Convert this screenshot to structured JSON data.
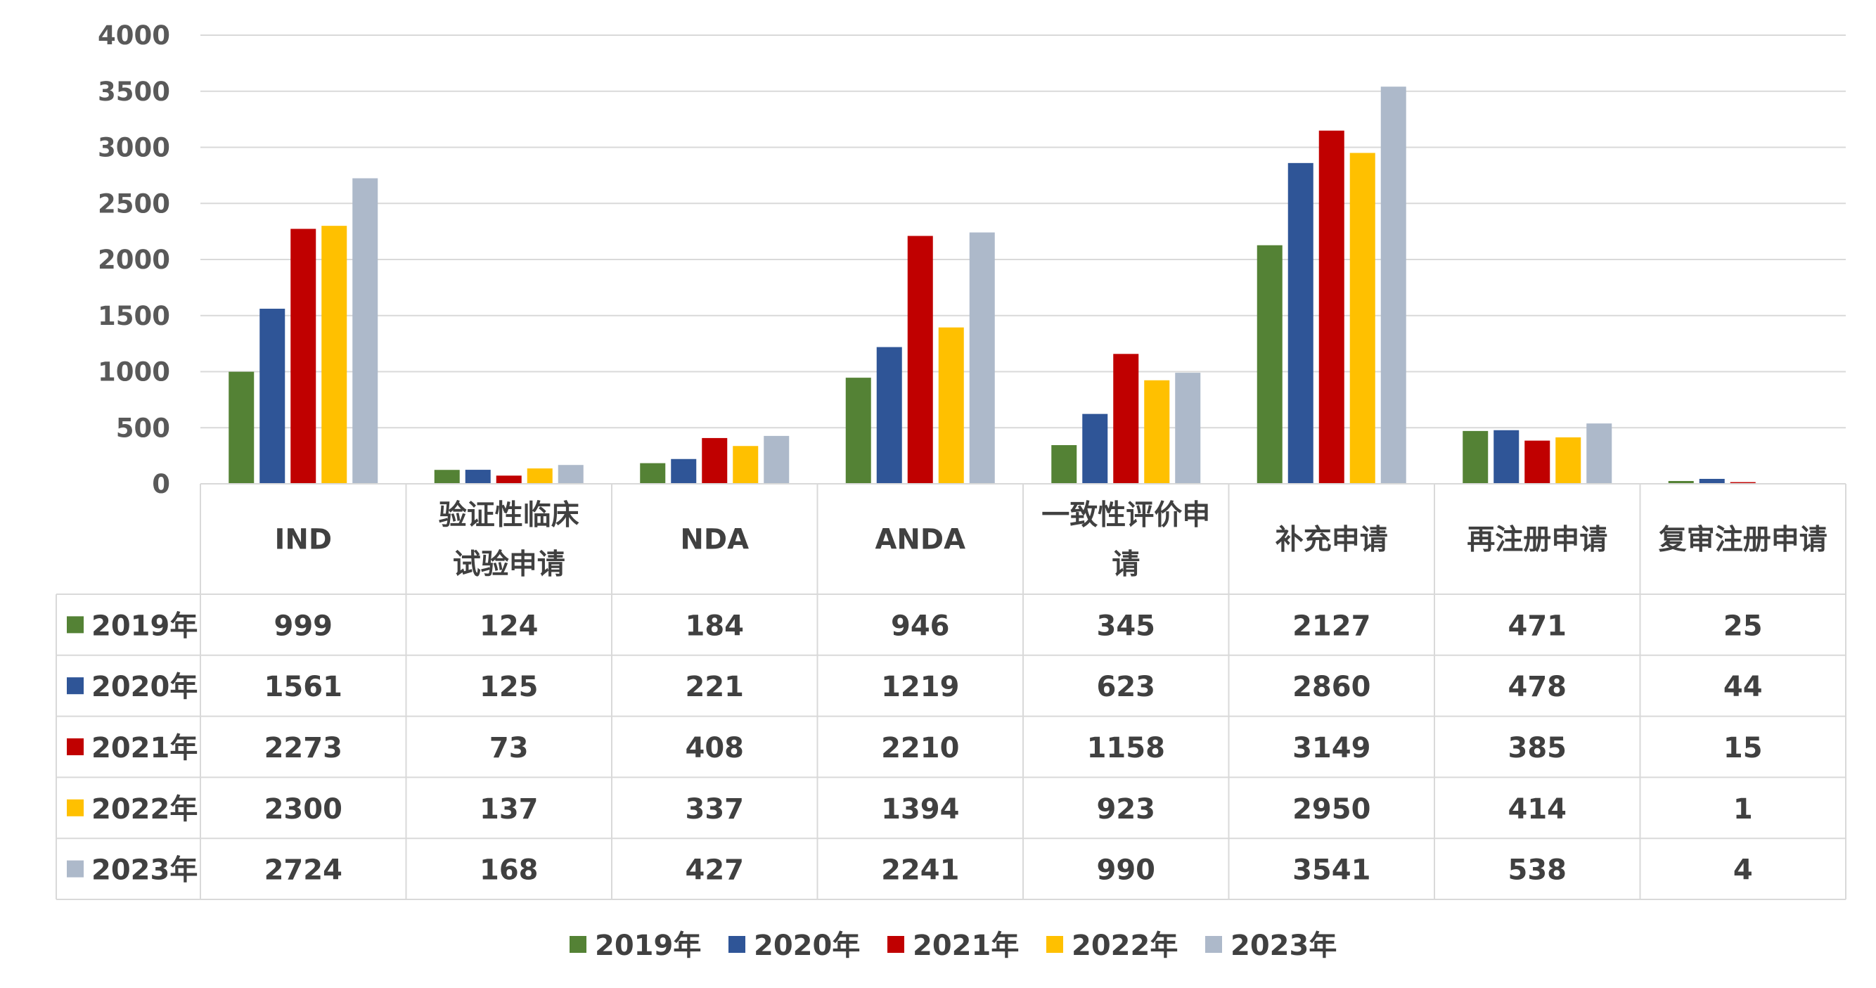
{
  "chart_data": {
    "type": "bar",
    "title": "",
    "xlabel": "",
    "ylabel": "",
    "ylim": [
      0,
      4000
    ],
    "y_ticks": [
      "0",
      "500",
      "1000",
      "1500",
      "2000",
      "2500",
      "3000",
      "3500",
      "4000"
    ],
    "grid": true,
    "legend_position": "bottom",
    "data_table": true,
    "categories": [
      [
        "IND"
      ],
      [
        "验证性临床",
        "试验申请"
      ],
      [
        "NDA"
      ],
      [
        "ANDA"
      ],
      [
        "一致性评价申",
        "请"
      ],
      [
        "补充申请"
      ],
      [
        "再注册申请"
      ],
      [
        "复审注册申请"
      ]
    ],
    "series": [
      {
        "name": "2019年",
        "color": "#548235",
        "values": [
          999,
          124,
          184,
          946,
          345,
          2127,
          471,
          25
        ]
      },
      {
        "name": "2020年",
        "color": "#2F5597",
        "values": [
          1561,
          125,
          221,
          1219,
          623,
          2860,
          478,
          44
        ]
      },
      {
        "name": "2021年",
        "color": "#C00000",
        "values": [
          2273,
          73,
          408,
          2210,
          1158,
          3149,
          385,
          15
        ]
      },
      {
        "name": "2022年",
        "color": "#FFC000",
        "values": [
          2300,
          137,
          337,
          1394,
          923,
          2950,
          414,
          1
        ]
      },
      {
        "name": "2023年",
        "color": "#ADB9CA",
        "values": [
          2724,
          168,
          427,
          2241,
          990,
          3541,
          538,
          4
        ]
      }
    ]
  }
}
